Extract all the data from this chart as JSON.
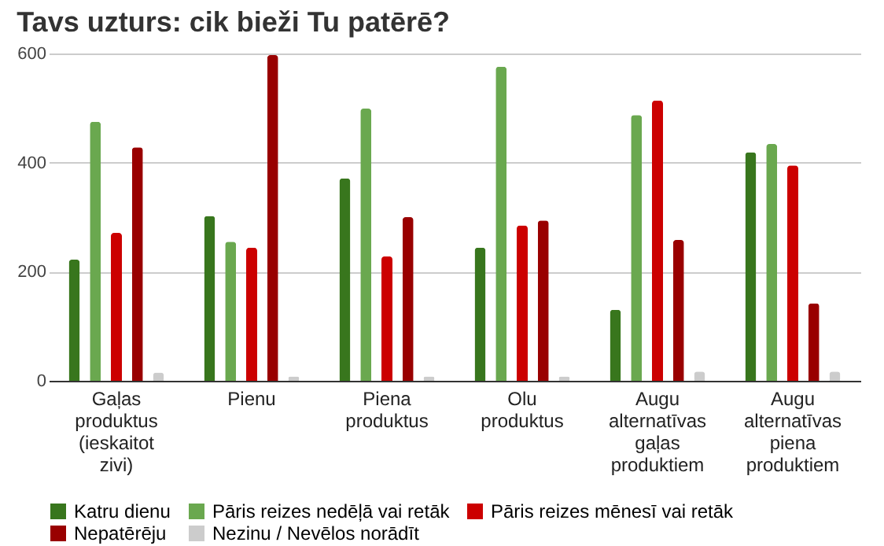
{
  "chart_data": {
    "type": "bar",
    "title": "Tavs uzturs: cik bieži Tu patērē?",
    "categories": [
      "Gaļas produktus (ieskaitot zivi)",
      "Pienu",
      "Piena produktus",
      "Olu produktus",
      "Augu alternatīvas gaļas produktiem",
      "Augu alternatīvas piena produktiem"
    ],
    "series": [
      {
        "name": "Katru dienu",
        "color": "#38761d",
        "values": [
          222,
          302,
          371,
          244,
          130,
          419
        ]
      },
      {
        "name": "Pāris reizes nedēļā vai retāk",
        "color": "#6aa84f",
        "values": [
          475,
          255,
          499,
          576,
          487,
          434
        ]
      },
      {
        "name": "Pāris reizes mēnesī vai retāk",
        "color": "#cc0000",
        "values": [
          271,
          244,
          228,
          285,
          514,
          395
        ]
      },
      {
        "name": "Nepatērēju",
        "color": "#990000",
        "values": [
          428,
          597,
          300,
          294,
          258,
          142
        ]
      },
      {
        "name": "Nezinu / Nevēlos norādīt",
        "color": "#cccccc",
        "values": [
          15,
          8,
          8,
          8,
          17,
          17
        ]
      }
    ],
    "ylim": [
      0,
      600
    ],
    "yticks": [
      0,
      200,
      400,
      600
    ],
    "grid": "y",
    "legend": "bottom"
  }
}
